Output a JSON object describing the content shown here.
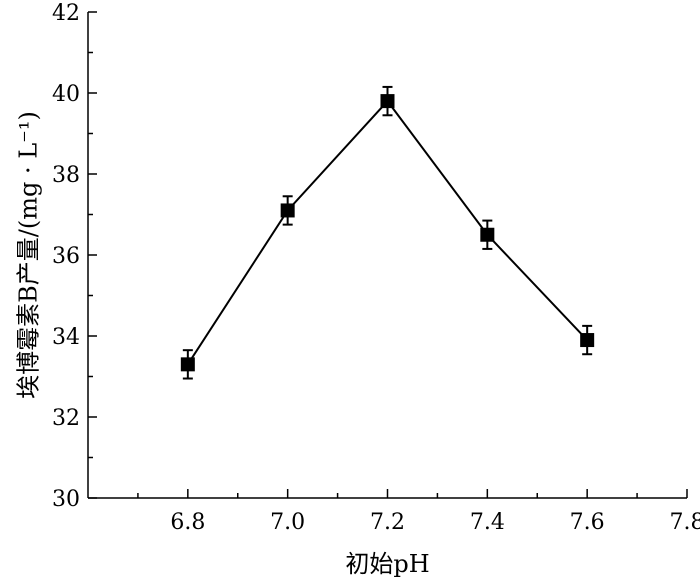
{
  "chart_data": {
    "type": "line",
    "xlabel": "初始pH",
    "ylabel": "埃博霉素B产量/(mg · L⁻¹)",
    "xlim": [
      6.6,
      7.8
    ],
    "ylim": [
      30,
      42
    ],
    "x_ticks": [
      "6.8",
      "7.0",
      "7.2",
      "7.4",
      "7.6",
      "7.8"
    ],
    "y_ticks": [
      "30",
      "32",
      "34",
      "36",
      "38",
      "40",
      "42"
    ],
    "grid": false,
    "legend": "none",
    "series": [
      {
        "x": [
          6.8,
          7.0,
          7.2,
          7.4,
          7.6
        ],
        "y": [
          33.3,
          37.1,
          39.8,
          36.5,
          33.9
        ],
        "error": [
          0.35,
          0.35,
          0.35,
          0.35,
          0.35
        ],
        "marker": "square",
        "color": "#000000"
      }
    ]
  }
}
